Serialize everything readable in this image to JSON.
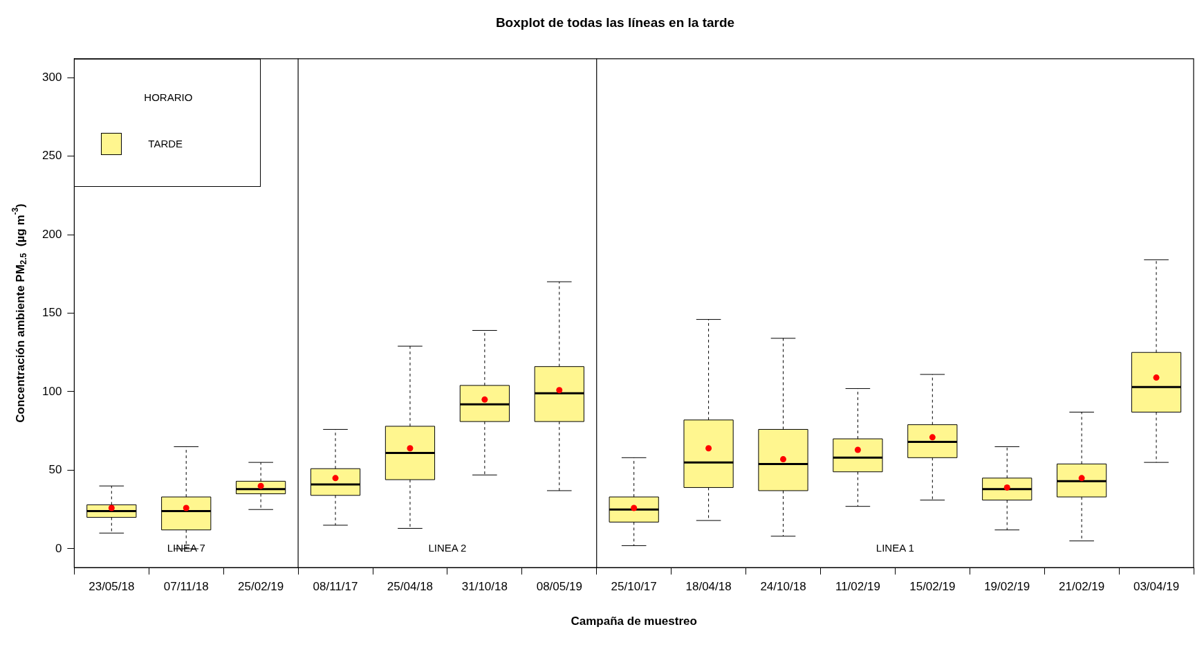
{
  "chart_data": {
    "type": "box",
    "title": "Boxplot de todas las líneas en la tarde",
    "xlabel": "Campaña de muestreo",
    "ylabel": "Concentración ambiente PM$_{2.5}$  (µg m$^{-3}$)",
    "legend_title": "HORARIO",
    "legend": "top left",
    "grid": false,
    "categories": [
      "23/05/18",
      "07/11/18",
      "25/02/19",
      "08/11/17",
      "25/04/18",
      "31/10/18",
      "08/05/19",
      "25/10/17",
      "18/04/18",
      "24/10/18",
      "11/02/19",
      "15/02/19",
      "19/02/19",
      "21/02/19",
      "03/04/19"
    ],
    "series": [
      {
        "name": "TARDE",
        "color": "#fff68f",
        "boxes": [
          {
            "low": 10,
            "q1": 20,
            "median": 24,
            "q3": 28,
            "high": 40,
            "mean": 26
          },
          {
            "low": 0,
            "q1": 12,
            "median": 24,
            "q3": 33,
            "high": 65,
            "mean": 26
          },
          {
            "low": 25,
            "q1": 35,
            "median": 38,
            "q3": 43,
            "high": 55,
            "mean": 40
          },
          {
            "low": 15,
            "q1": 34,
            "median": 41,
            "q3": 51,
            "high": 76,
            "mean": 45
          },
          {
            "low": 13,
            "q1": 44,
            "median": 61,
            "q3": 78,
            "high": 129,
            "mean": 64
          },
          {
            "low": 47,
            "q1": 81,
            "median": 92,
            "q3": 104,
            "high": 139,
            "mean": 95
          },
          {
            "low": 37,
            "q1": 81,
            "median": 99,
            "q3": 116,
            "high": 170,
            "mean": 101
          },
          {
            "low": 2,
            "q1": 17,
            "median": 25,
            "q3": 33,
            "high": 58,
            "mean": 26
          },
          {
            "low": 18,
            "q1": 39,
            "median": 55,
            "q3": 82,
            "high": 146,
            "mean": 64
          },
          {
            "low": 8,
            "q1": 37,
            "median": 54,
            "q3": 76,
            "high": 134,
            "mean": 57
          },
          {
            "low": 27,
            "q1": 49,
            "median": 58,
            "q3": 70,
            "high": 102,
            "mean": 63
          },
          {
            "low": 31,
            "q1": 58,
            "median": 68,
            "q3": 79,
            "high": 111,
            "mean": 71
          },
          {
            "low": 12,
            "q1": 31,
            "median": 38,
            "q3": 45,
            "high": 65,
            "mean": 39
          },
          {
            "low": 5,
            "q1": 33,
            "median": 43,
            "q3": 54,
            "high": 87,
            "mean": 45
          },
          {
            "low": 55,
            "q1": 87,
            "median": 103,
            "q3": 125,
            "high": 184,
            "mean": 109
          }
        ]
      }
    ],
    "ylim": [
      -12,
      312
    ],
    "yticks": [
      0,
      50,
      100,
      150,
      200,
      250,
      300
    ],
    "annotations": [
      "LINEA 7",
      "LINEA 2",
      "LINEA 1"
    ]
  }
}
